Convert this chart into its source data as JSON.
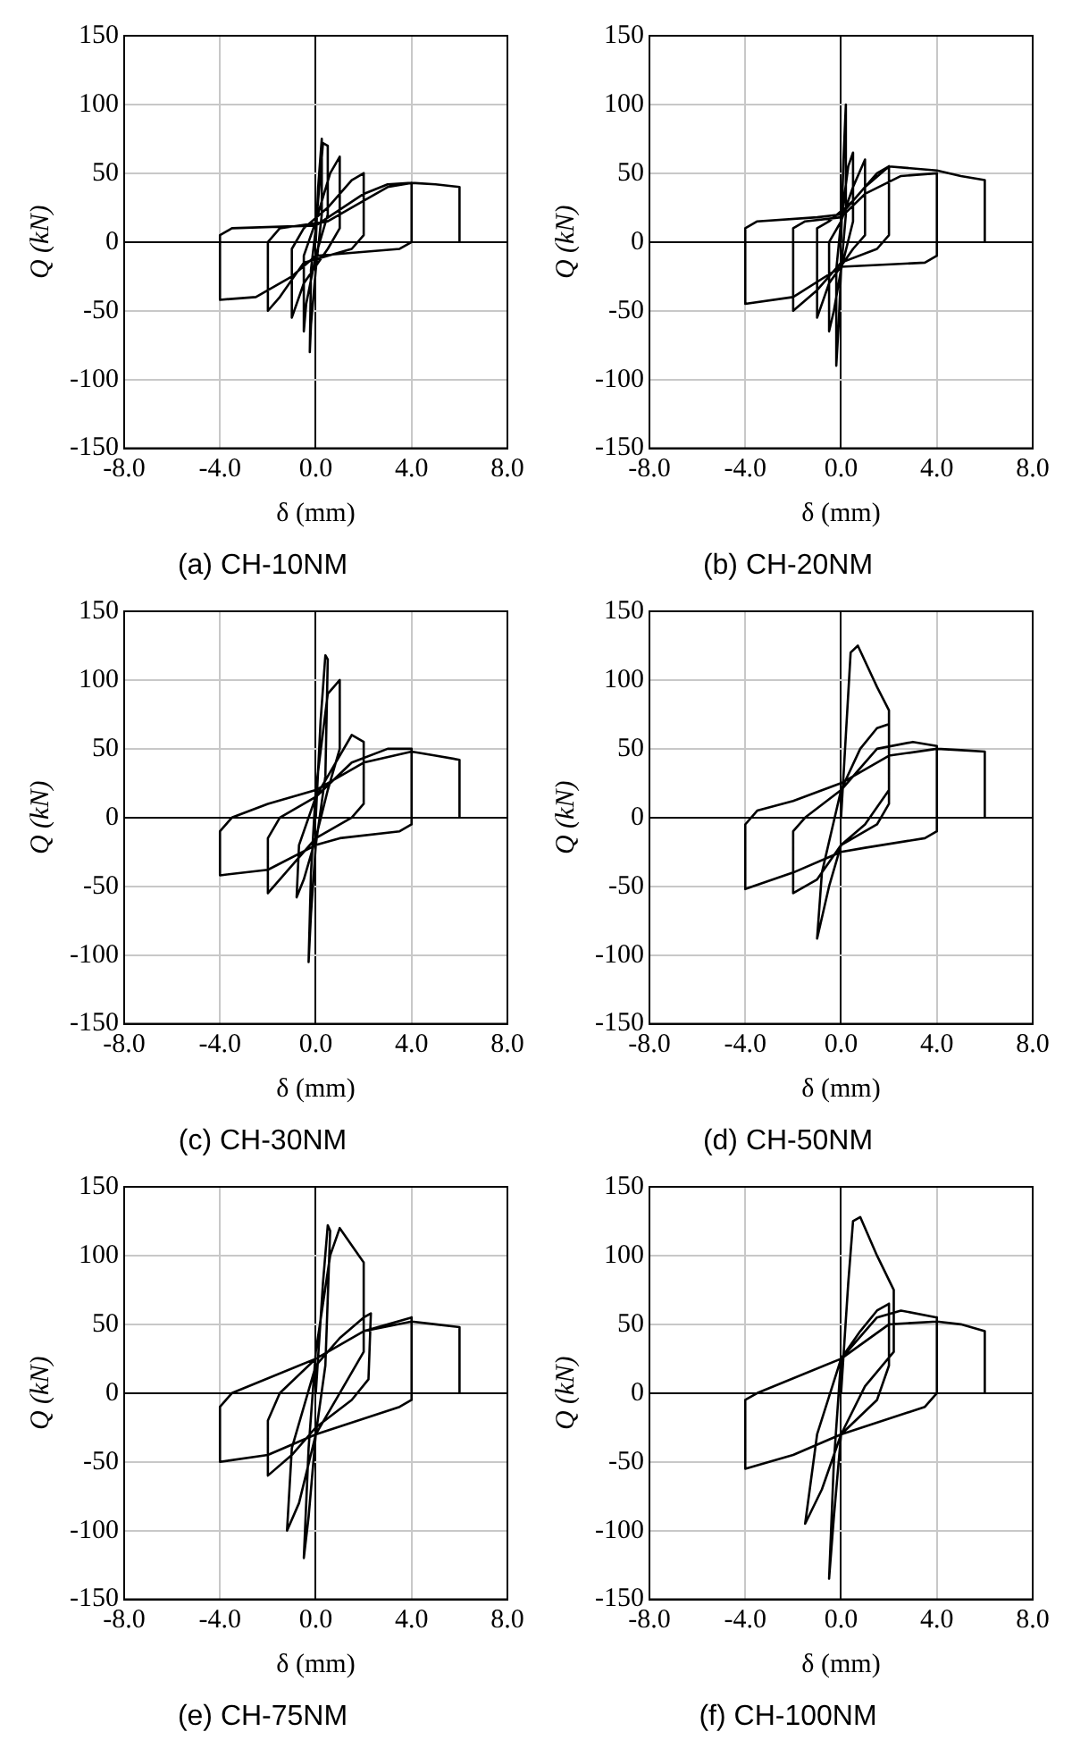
{
  "chart_data": [
    {
      "type": "line",
      "title": "(a) CH-10NM",
      "xlabel": "δ (mm)",
      "ylabel": "Q (kN)",
      "xlim": [
        -8,
        8
      ],
      "xticks": [
        {
          "value": -8,
          "label": "-8.0"
        },
        {
          "value": -4,
          "label": "-4.0"
        },
        {
          "value": 0,
          "label": "0.0"
        },
        {
          "value": 4,
          "label": "4.0"
        },
        {
          "value": 8,
          "label": "8.0"
        }
      ],
      "ylim": [
        -150,
        150
      ],
      "yticks": [
        -150,
        -100,
        -50,
        0,
        50,
        100,
        150
      ],
      "grid": true,
      "marker": "none",
      "line_style": "solid",
      "legend": false,
      "series": [
        {
          "color": "#000000",
          "x": [
            0,
            0.1,
            0.25,
            0.25,
            0,
            -0.2,
            -0.25,
            -0.2,
            0,
            0.3,
            0.5,
            0.5,
            0,
            -0.4,
            -0.5,
            -0.5,
            0,
            0.6,
            1,
            1,
            0.5,
            -0.5,
            -1,
            -1,
            -0.5,
            0.5,
            1.5,
            2,
            2,
            1.5,
            -0.5,
            -1.5,
            -2,
            -2,
            -1.5,
            0.5,
            2,
            3,
            4,
            4,
            3.5,
            0,
            -1,
            -2.5,
            -4,
            -4,
            -3.5,
            0,
            2,
            3,
            4,
            5,
            6,
            6
          ],
          "values": [
            0,
            40,
            75,
            20,
            -20,
            -60,
            -80,
            -20,
            10,
            72,
            70,
            20,
            -10,
            -45,
            -65,
            -10,
            15,
            50,
            62,
            10,
            -5,
            -30,
            -55,
            -5,
            10,
            25,
            45,
            50,
            5,
            -5,
            -15,
            -40,
            -50,
            0,
            10,
            15,
            30,
            40,
            43,
            0,
            -5,
            -10,
            -25,
            -40,
            -42,
            5,
            10,
            12,
            35,
            42,
            43,
            42,
            40,
            0
          ]
        }
      ]
    },
    {
      "type": "line",
      "title": "(b) CH-20NM",
      "xlabel": "δ (mm)",
      "ylabel": "Q (kN)",
      "xlim": [
        -8,
        8
      ],
      "xticks": [
        {
          "value": -8,
          "label": "-8.0"
        },
        {
          "value": -4,
          "label": "-4.0"
        },
        {
          "value": 0,
          "label": "0.0"
        },
        {
          "value": 4,
          "label": "4.0"
        },
        {
          "value": 8,
          "label": "8.0"
        }
      ],
      "ylim": [
        -150,
        150
      ],
      "yticks": [
        -150,
        -100,
        -50,
        0,
        50,
        100,
        150
      ],
      "grid": true,
      "marker": "none",
      "line_style": "solid",
      "legend": false,
      "series": [
        {
          "color": "#000000",
          "x": [
            0,
            0.1,
            0.2,
            0.2,
            0,
            -0.1,
            -0.2,
            -0.2,
            0,
            0.3,
            0.5,
            0.5,
            0,
            -0.3,
            -0.5,
            -0.5,
            0,
            0.5,
            1,
            1,
            0.5,
            -0.5,
            -1,
            -1,
            -0.5,
            0.5,
            1.5,
            2,
            2,
            1.5,
            0,
            -1,
            -2,
            -2,
            -1.5,
            0,
            1,
            2.5,
            4,
            4,
            3.5,
            0,
            -2,
            -4,
            -4,
            -3.5,
            -1,
            0,
            1,
            2,
            4,
            5,
            6,
            6
          ],
          "values": [
            0,
            60,
            100,
            20,
            -20,
            -60,
            -90,
            -20,
            15,
            55,
            65,
            15,
            -20,
            -50,
            -65,
            0,
            15,
            40,
            60,
            5,
            -5,
            -30,
            -55,
            10,
            15,
            30,
            50,
            55,
            5,
            -5,
            -15,
            -35,
            -50,
            10,
            15,
            18,
            35,
            48,
            50,
            -10,
            -15,
            -18,
            -40,
            -45,
            10,
            15,
            18,
            20,
            40,
            55,
            52,
            48,
            45,
            0
          ]
        }
      ]
    },
    {
      "type": "line",
      "title": "(c) CH-30NM",
      "xlabel": "δ (mm)",
      "ylabel": "Q (kN)",
      "xlim": [
        -8,
        8
      ],
      "xticks": [
        {
          "value": -8,
          "label": "-8.0"
        },
        {
          "value": -4,
          "label": "-4.0"
        },
        {
          "value": 0,
          "label": "0.0"
        },
        {
          "value": 4,
          "label": "4.0"
        },
        {
          "value": 8,
          "label": "8.0"
        }
      ],
      "ylim": [
        -150,
        150
      ],
      "yticks": [
        -150,
        -100,
        -50,
        0,
        50,
        100,
        150
      ],
      "grid": true,
      "marker": "none",
      "line_style": "solid",
      "legend": false,
      "series": [
        {
          "color": "#000000",
          "x": [
            0,
            0.2,
            0.4,
            0.5,
            0.4,
            0,
            -0.2,
            -0.3,
            -0.2,
            0,
            0.5,
            1,
            1,
            0.5,
            0,
            -0.5,
            -0.8,
            -0.7,
            0,
            1,
            1.5,
            2,
            2,
            1.5,
            0,
            -1,
            -2,
            -2,
            -1.5,
            0,
            1.5,
            3,
            4,
            4,
            3.5,
            1,
            0,
            -2,
            -4,
            -4,
            -3.5,
            -2,
            0,
            2,
            4,
            5,
            6,
            6
          ],
          "values": [
            0,
            70,
            118,
            115,
            30,
            -20,
            -70,
            -105,
            -40,
            20,
            90,
            100,
            50,
            20,
            -15,
            -45,
            -58,
            -20,
            15,
            45,
            60,
            55,
            10,
            0,
            -15,
            -35,
            -55,
            -15,
            0,
            15,
            40,
            50,
            50,
            -5,
            -10,
            -15,
            -20,
            -38,
            -42,
            -10,
            0,
            10,
            20,
            40,
            48,
            45,
            42,
            0
          ]
        }
      ]
    },
    {
      "type": "line",
      "title": "(d) CH-50NM",
      "xlabel": "δ (mm)",
      "ylabel": "Q (kN)",
      "xlim": [
        -8,
        8
      ],
      "xticks": [
        {
          "value": -8,
          "label": "-8.0"
        },
        {
          "value": -4,
          "label": "-4.0"
        },
        {
          "value": 0,
          "label": "0.0"
        },
        {
          "value": 4,
          "label": "4.0"
        },
        {
          "value": 8,
          "label": "8.0"
        }
      ],
      "ylim": [
        -150,
        150
      ],
      "yticks": [
        -150,
        -100,
        -50,
        0,
        50,
        100,
        150
      ],
      "grid": true,
      "marker": "none",
      "line_style": "solid",
      "legend": false,
      "series": [
        {
          "color": "#000000",
          "x": [
            0,
            0.2,
            0.4,
            0.7,
            1.5,
            2,
            2,
            1,
            0,
            -0.5,
            -1,
            -0.8,
            0,
            0.8,
            1.5,
            2,
            2,
            1.5,
            0,
            -1,
            -2,
            -2,
            -1.5,
            0,
            1.5,
            3,
            4,
            4,
            3.5,
            1,
            0,
            -2,
            -4,
            -4,
            -3.5,
            -2,
            0,
            2,
            4,
            5,
            6,
            6
          ],
          "values": [
            0,
            60,
            120,
            125,
            95,
            78,
            20,
            -5,
            -20,
            -50,
            -88,
            -40,
            20,
            50,
            65,
            68,
            10,
            -5,
            -20,
            -45,
            -55,
            -10,
            0,
            20,
            50,
            55,
            52,
            -10,
            -15,
            -22,
            -25,
            -40,
            -52,
            -5,
            5,
            12,
            25,
            45,
            50,
            49,
            48,
            0
          ]
        }
      ]
    },
    {
      "type": "line",
      "title": "(e) CH-75NM",
      "xlabel": "δ (mm)",
      "ylabel": "Q (kN)",
      "xlim": [
        -8,
        8
      ],
      "xticks": [
        {
          "value": -8,
          "label": "-8.0"
        },
        {
          "value": -4,
          "label": "-4.0"
        },
        {
          "value": 0,
          "label": "0.0"
        },
        {
          "value": 4,
          "label": "4.0"
        },
        {
          "value": 8,
          "label": "8.0"
        }
      ],
      "ylim": [
        -150,
        150
      ],
      "yticks": [
        -150,
        -100,
        -50,
        0,
        50,
        100,
        150
      ],
      "grid": true,
      "marker": "none",
      "line_style": "solid",
      "legend": false,
      "series": [
        {
          "color": "#000000",
          "x": [
            0,
            0.3,
            0.5,
            0.6,
            0.4,
            0,
            -0.3,
            -0.5,
            -0.3,
            0,
            0.6,
            1,
            1.8,
            2,
            2,
            1,
            0,
            -0.7,
            -1.2,
            -1,
            0,
            1,
            2,
            2.3,
            2.2,
            1.5,
            0,
            -1,
            -2,
            -2,
            -1.5,
            0,
            2,
            4,
            4,
            3.5,
            0,
            -2,
            -4,
            -4,
            -3.5,
            0,
            2,
            4,
            5,
            6,
            6
          ],
          "values": [
            0,
            80,
            122,
            118,
            20,
            -30,
            -90,
            -120,
            -40,
            30,
            100,
            120,
            100,
            95,
            30,
            0,
            -30,
            -80,
            -100,
            -40,
            20,
            40,
            55,
            58,
            10,
            -5,
            -25,
            -45,
            -60,
            -20,
            0,
            25,
            45,
            55,
            -5,
            -10,
            -30,
            -45,
            -50,
            -10,
            0,
            25,
            45,
            52,
            50,
            48,
            0
          ]
        }
      ]
    },
    {
      "type": "line",
      "title": "(f) CH-100NM",
      "xlabel": "δ (mm)",
      "ylabel": "Q (kN)",
      "xlim": [
        -8,
        8
      ],
      "xticks": [
        {
          "value": -8,
          "label": "-8.0"
        },
        {
          "value": -4,
          "label": "-4.0"
        },
        {
          "value": 0,
          "label": "0.0"
        },
        {
          "value": 4,
          "label": "4.0"
        },
        {
          "value": 8,
          "label": "8.0"
        }
      ],
      "ylim": [
        -150,
        150
      ],
      "yticks": [
        -150,
        -100,
        -50,
        0,
        50,
        100,
        150
      ],
      "grid": true,
      "marker": "none",
      "line_style": "solid",
      "legend": false,
      "series": [
        {
          "color": "#000000",
          "x": [
            0,
            0.3,
            0.5,
            0.8,
            1.5,
            2.2,
            2.2,
            1,
            0,
            -0.3,
            -0.5,
            -0.3,
            0,
            0.8,
            1.5,
            2,
            2,
            1.5,
            0,
            -0.8,
            -1.5,
            -1,
            0,
            1.5,
            2.5,
            4,
            4,
            3.5,
            0,
            -2,
            -4,
            -4,
            -3.5,
            0,
            2,
            4,
            5,
            6,
            6
          ],
          "values": [
            0,
            80,
            125,
            128,
            100,
            75,
            30,
            5,
            -30,
            -90,
            -135,
            -50,
            25,
            45,
            60,
            65,
            20,
            -5,
            -30,
            -70,
            -95,
            -30,
            25,
            55,
            60,
            55,
            0,
            -10,
            -30,
            -45,
            -55,
            -5,
            0,
            25,
            50,
            52,
            50,
            45,
            0
          ]
        }
      ]
    }
  ]
}
